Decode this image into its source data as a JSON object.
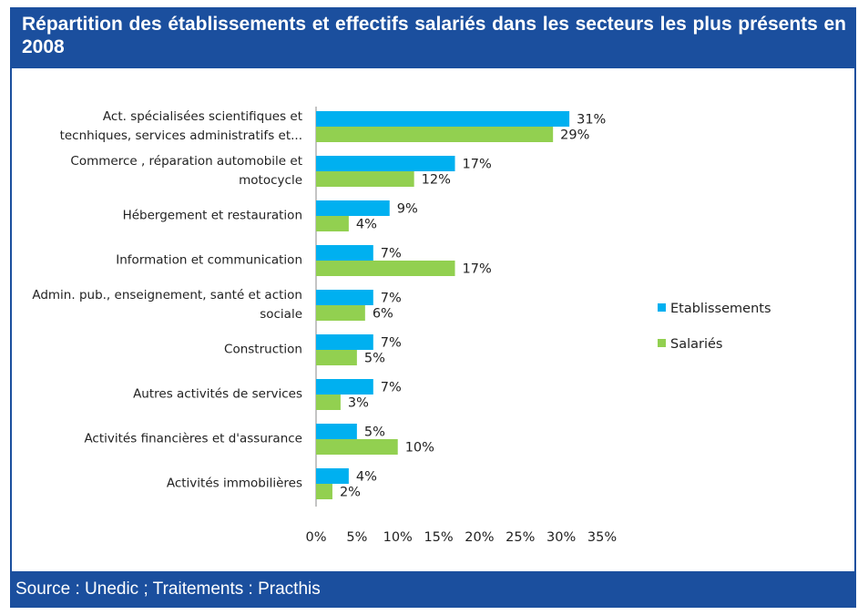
{
  "chart_data": {
    "type": "hbar",
    "title": "Répartition des établissements et effectifs salariés dans les secteurs les plus présents en 2008",
    "source": "Source : Unedic ; Traitements : Practhis",
    "categories": [
      "Act. spécialisées scientifiques et tecnhiques, services administratifs et...",
      "Commerce , réparation automobile et motocycle",
      "Hébergement et restauration",
      "Information et communication",
      "Admin. pub., enseignement, santé et action sociale",
      "Construction",
      "Autres activités de services",
      "Activités financières et d'assurance",
      "Activités immobilières"
    ],
    "series": [
      {
        "name": "Etablissements",
        "color": "#00b0f0",
        "values": [
          31,
          17,
          9,
          7,
          7,
          7,
          7,
          5,
          4
        ],
        "value_labels": [
          "31%",
          "17%",
          "9%",
          "7%",
          "7%",
          "7%",
          "7%",
          "5%",
          "4%"
        ]
      },
      {
        "name": "Salariés",
        "color": "#92d050",
        "values": [
          29,
          12,
          4,
          17,
          6,
          5,
          3,
          10,
          2
        ],
        "value_labels": [
          "29%",
          "12%",
          "4%",
          "17%",
          "6%",
          "5%",
          "3%",
          "10%",
          "2%"
        ]
      }
    ],
    "xlim": [
      0,
      35
    ],
    "xticks": [
      {
        "value": 0,
        "label": "0%"
      },
      {
        "value": 5,
        "label": "5%"
      },
      {
        "value": 10,
        "label": "10%"
      },
      {
        "value": 15,
        "label": "15%"
      },
      {
        "value": 20,
        "label": "20%"
      },
      {
        "value": 25,
        "label": "25%"
      },
      {
        "value": 30,
        "label": "30%"
      },
      {
        "value": 35,
        "label": "35%"
      }
    ],
    "legend": "right"
  }
}
